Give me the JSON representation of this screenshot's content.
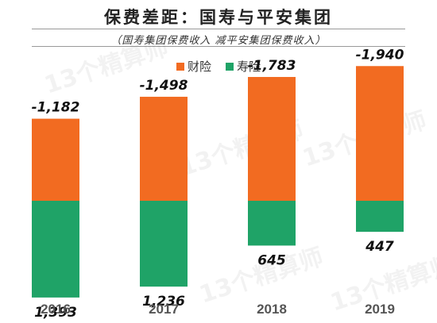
{
  "header": {
    "title": "保费差距：国寿与平安集团",
    "subtitle": "（国寿集团保费收入 减平安集团保费收入）"
  },
  "chart_data": {
    "type": "bar",
    "categories": [
      "2016",
      "2017",
      "2018",
      "2019"
    ],
    "series": [
      {
        "name": "财险",
        "values": [
          -1182,
          -1498,
          -1783,
          -1940
        ],
        "labels": [
          "-1,182",
          "-1,498",
          "-1,783",
          "-1,940"
        ],
        "color": "#F26B21"
      },
      {
        "name": "寿险",
        "values": [
          1393,
          1236,
          645,
          447
        ],
        "labels": [
          "1,393",
          "1,236",
          "645",
          "447"
        ],
        "color": "#1FA367"
      }
    ],
    "title": "保费差距：国寿与平安集团",
    "subtitle": "（国寿集团保费收入 减平安集团保费收入）",
    "legend_position": "top-center",
    "grid": false
  },
  "watermark": "13个精算师"
}
